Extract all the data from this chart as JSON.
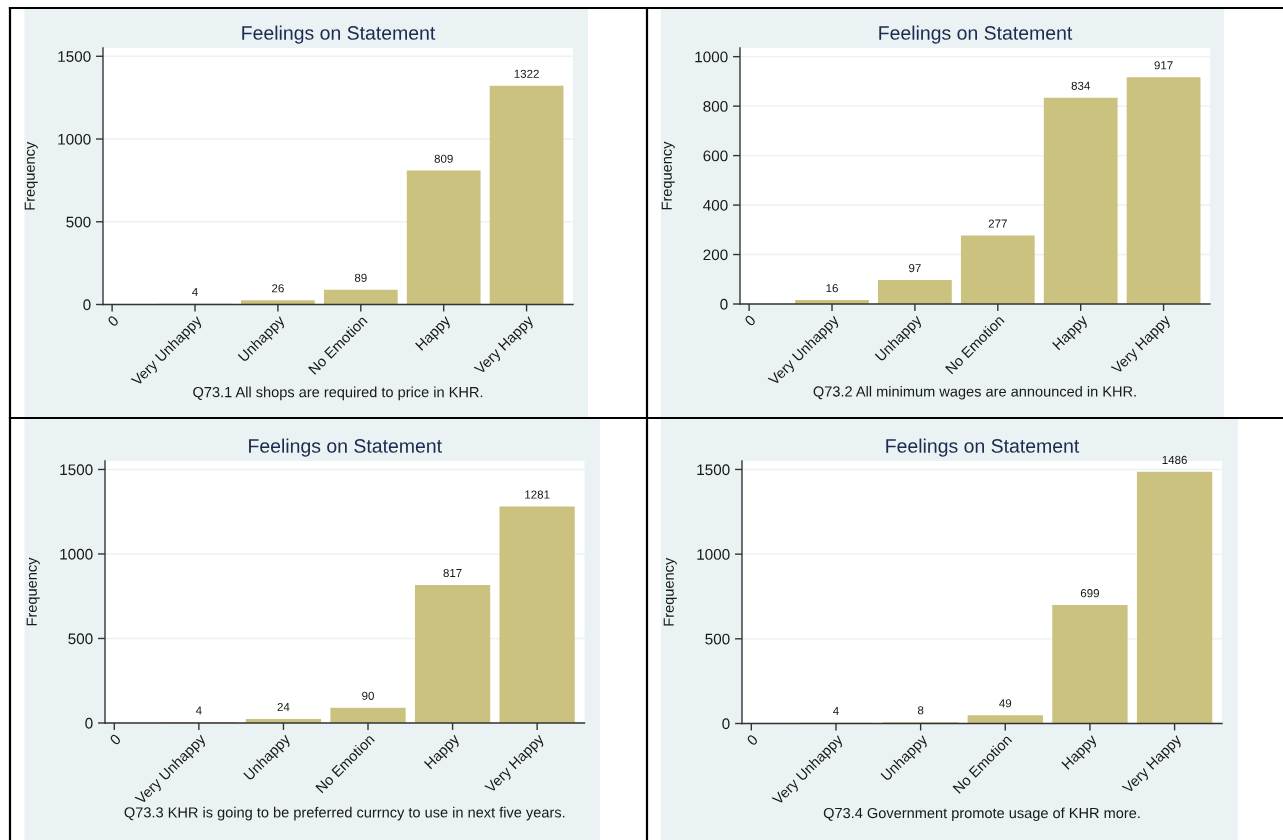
{
  "chart_data": [
    {
      "type": "bar",
      "title": "Feelings on Statement",
      "xlabel": "Q73.1 All shops are required to price in KHR.",
      "ylabel": "Frequency",
      "categories": [
        "0",
        "Very Unhappy",
        "Unhappy",
        "No Emotion",
        "Happy",
        "Very Happy"
      ],
      "values": [
        null,
        4,
        26,
        89,
        809,
        1322
      ],
      "color": "#cbc27f",
      "ylim": [
        0,
        1550
      ],
      "yticks": [
        0,
        500,
        1000,
        1500
      ],
      "grid": "y",
      "data_labels": true
    },
    {
      "type": "bar",
      "title": "Feelings on Statement",
      "xlabel": "Q73.2 All minimum wages are announced in KHR.",
      "ylabel": "Frequency",
      "categories": [
        "0",
        "Very Unhappy",
        "Unhappy",
        "No Emotion",
        "Happy",
        "Very Happy"
      ],
      "values": [
        null,
        16,
        97,
        277,
        834,
        917
      ],
      "color": "#cbc27f",
      "ylim": [
        0,
        1035
      ],
      "yticks": [
        0,
        200,
        400,
        600,
        800,
        1000
      ],
      "grid": "y",
      "data_labels": true
    },
    {
      "type": "bar",
      "title": "Feelings on Statement",
      "xlabel": "Q73.3 KHR is going to be preferred currncy to use in next five years.",
      "ylabel": "Frequency",
      "categories": [
        "0",
        "Very Unhappy",
        "Unhappy",
        "No Emotion",
        "Happy",
        "Very Happy"
      ],
      "values": [
        null,
        4,
        24,
        90,
        817,
        1281
      ],
      "color": "#cbc27f",
      "ylim": [
        0,
        1550
      ],
      "yticks": [
        0,
        500,
        1000,
        1500
      ],
      "grid": "y",
      "data_labels": true
    },
    {
      "type": "bar",
      "title": "Feelings on Statement",
      "xlabel": "Q73.4 Government promote usage of KHR more.",
      "ylabel": "Frequency",
      "categories": [
        "0",
        "Very Unhappy",
        "Unhappy",
        "No Emotion",
        "Happy",
        "Very Happy"
      ],
      "values": [
        null,
        4,
        8,
        49,
        699,
        1486
      ],
      "color": "#cbc27f",
      "ylim": [
        0,
        1550
      ],
      "yticks": [
        0,
        500,
        1000,
        1500
      ],
      "grid": "y",
      "data_labels": true
    }
  ]
}
